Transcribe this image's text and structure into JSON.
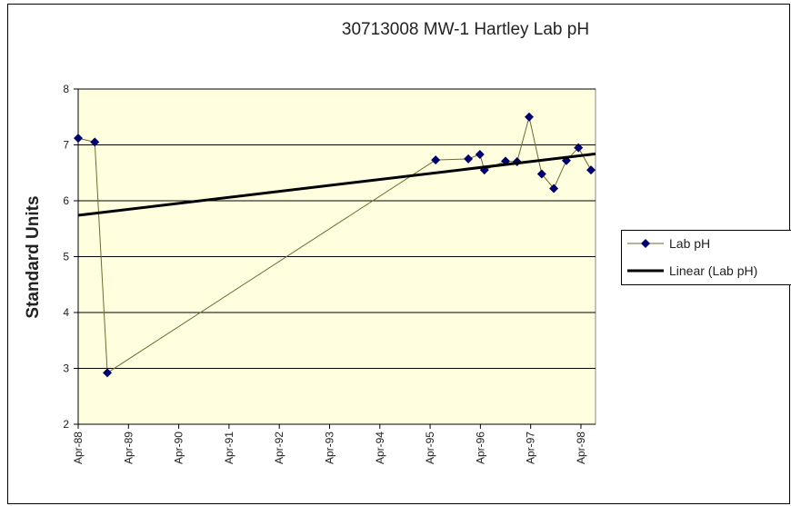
{
  "chart_data": {
    "type": "line",
    "title": "30713008    MW-1    Hartley    Lab pH",
    "y_label": "Standard Units",
    "series": [
      {
        "name": "Lab pH",
        "color": "#6b6b2e",
        "marker_color": "#00006e",
        "marker": "diamond",
        "x": [
          1988.25,
          1988.58,
          1988.83,
          1995.36,
          1996.01,
          1996.24,
          1996.33,
          1996.75,
          1996.98,
          1997.22,
          1997.47,
          1997.71,
          1997.96,
          1998.2,
          1998.45
        ],
        "values": [
          7.12,
          7.05,
          2.92,
          6.73,
          6.75,
          6.83,
          6.55,
          6.71,
          6.7,
          7.5,
          6.48,
          6.22,
          6.72,
          6.95,
          6.55
        ]
      },
      {
        "name": "Linear (Lab pH)",
        "color": "#000000",
        "marker": "none",
        "x": [
          1988.25,
          1998.54
        ],
        "values": [
          5.74,
          6.84
        ]
      }
    ],
    "xlim": [
      1988.25,
      1998.54
    ],
    "xticks": [
      {
        "value": 1988.25,
        "label": "Apr-88"
      },
      {
        "value": 1989.25,
        "label": "Apr-89"
      },
      {
        "value": 1990.25,
        "label": "Apr-90"
      },
      {
        "value": 1991.25,
        "label": "Apr-91"
      },
      {
        "value": 1992.25,
        "label": "Apr-92"
      },
      {
        "value": 1993.25,
        "label": "Apr-93"
      },
      {
        "value": 1994.25,
        "label": "Apr-94"
      },
      {
        "value": 1995.25,
        "label": "Apr-95"
      },
      {
        "value": 1996.25,
        "label": "Apr-96"
      },
      {
        "value": 1997.25,
        "label": "Apr-97"
      },
      {
        "value": 1998.25,
        "label": "Apr-98"
      }
    ],
    "ylim": [
      2,
      8
    ],
    "yticks": [
      2,
      3,
      4,
      5,
      6,
      7,
      8
    ],
    "grid": true,
    "legend": "right"
  }
}
